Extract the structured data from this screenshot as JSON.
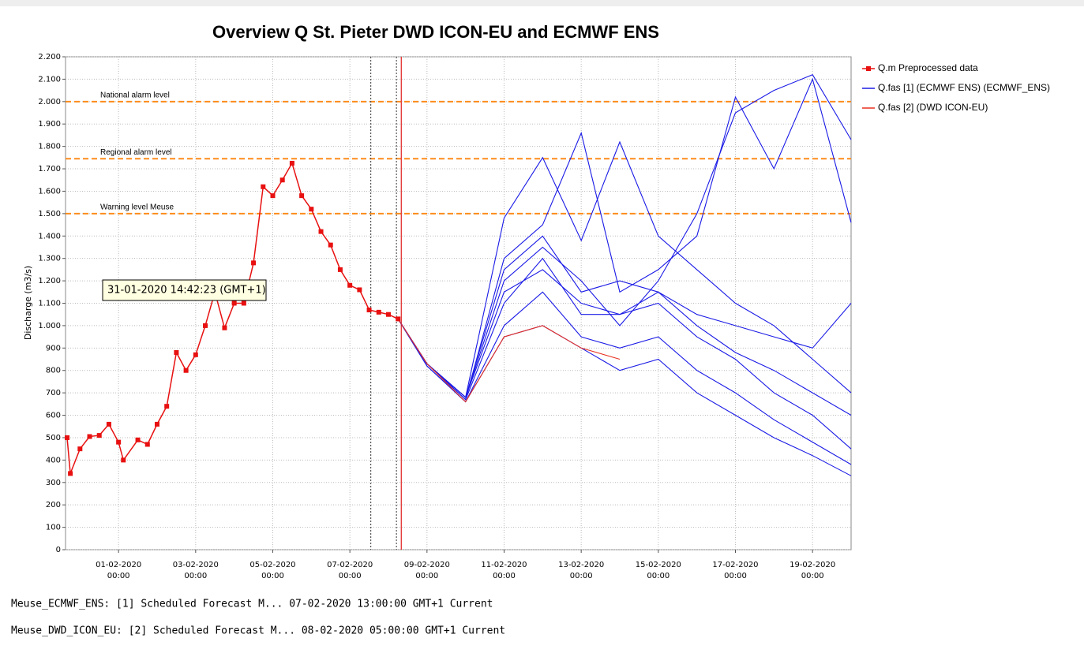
{
  "chart_data": {
    "type": "line",
    "title": "Overview Q St. Pieter DWD ICON-EU and ECMWF ENS",
    "y_label": "Discharge (m3/s)",
    "xlim": [
      "30-01-2020 15:00",
      "20-02-2020 00:00"
    ],
    "xticks": [
      "01-02-2020 00:00",
      "03-02-2020 00:00",
      "05-02-2020 00:00",
      "07-02-2020 00:00",
      "09-02-2020 00:00",
      "11-02-2020 00:00",
      "13-02-2020 00:00",
      "15-02-2020 00:00",
      "17-02-2020 00:00",
      "19-02-2020 00:00"
    ],
    "ylim": [
      0,
      2200
    ],
    "yticks": [
      0,
      100,
      200,
      300,
      400,
      500,
      600,
      700,
      800,
      900,
      {
        "value": 1000,
        "label": "1.000"
      },
      {
        "value": 1100,
        "label": "1.100"
      },
      {
        "value": 1200,
        "label": "1.200"
      },
      {
        "value": 1300,
        "label": "1.300"
      },
      {
        "value": 1400,
        "label": "1.400"
      },
      {
        "value": 1500,
        "label": "1.500"
      },
      {
        "value": 1600,
        "label": "1.600"
      },
      {
        "value": 1700,
        "label": "1.700"
      },
      {
        "value": 1800,
        "label": "1.800"
      },
      {
        "value": 1900,
        "label": "1.900"
      },
      {
        "value": 2000,
        "label": "2.000"
      },
      {
        "value": 2100,
        "label": "2.100"
      },
      {
        "value": 2200,
        "label": "2.200"
      }
    ],
    "grid": true,
    "legend": "right",
    "thresholds": [
      {
        "value": 2000,
        "label": "National alarm level",
        "color": "#ff8c1a"
      },
      {
        "value": 1745,
        "label": "Regional alarm level",
        "color": "#ff8c1a"
      },
      {
        "value": 1500,
        "label": "Warning level Meuse",
        "color": "#ff8c1a"
      }
    ],
    "vlines": [
      {
        "x": "07-02-2020 13:00",
        "color": "#555555",
        "style": "dotted"
      },
      {
        "x": "08-02-2020 05:00",
        "color": "#555555",
        "style": "dotted"
      },
      {
        "x": "08-02-2020 08:00",
        "color": "#e02020",
        "style": "solid"
      }
    ],
    "series": [
      {
        "name": "Q.m Preprocessed data",
        "color": "#e81010",
        "marker": "square",
        "x": [
          "30-01-2020 16:00",
          "30-01-2020 18:00",
          "31-01-2020 00:00",
          "31-01-2020 06:00",
          "31-01-2020 12:00",
          "31-01-2020 18:00",
          "01-02-2020 00:00",
          "01-02-2020 03:00",
          "01-02-2020 12:00",
          "01-02-2020 18:00",
          "02-02-2020 00:00",
          "02-02-2020 06:00",
          "02-02-2020 12:00",
          "02-02-2020 18:00",
          "03-02-2020 00:00",
          "03-02-2020 06:00",
          "03-02-2020 12:00",
          "03-02-2020 18:00",
          "04-02-2020 00:00",
          "04-02-2020 06:00",
          "04-02-2020 12:00",
          "04-02-2020 18:00",
          "05-02-2020 00:00",
          "05-02-2020 06:00",
          "05-02-2020 12:00",
          "05-02-2020 18:00",
          "06-02-2020 00:00",
          "06-02-2020 06:00",
          "06-02-2020 12:00",
          "06-02-2020 18:00",
          "07-02-2020 00:00",
          "07-02-2020 06:00",
          "07-02-2020 12:00",
          "07-02-2020 18:00",
          "08-02-2020 00:00",
          "08-02-2020 06:00"
        ],
        "values": [
          500,
          340,
          450,
          505,
          510,
          560,
          480,
          400,
          490,
          470,
          560,
          640,
          880,
          800,
          870,
          1000,
          1150,
          990,
          1100,
          1100,
          1280,
          1620,
          1580,
          1650,
          1725,
          1580,
          1520,
          1420,
          1360,
          1250,
          1180,
          1160,
          1070,
          1060,
          1050,
          1030
        ]
      },
      {
        "name": "Q.fas [1] (ECMWF ENS)  (ECMWF_ENS)",
        "color": "#1a1ae6",
        "x": [
          "08-02-2020 06:00",
          "09-02-2020 00:00",
          "10-02-2020 00:00",
          "11-02-2020 00:00",
          "12-02-2020 00:00",
          "13-02-2020 00:00",
          "14-02-2020 00:00",
          "15-02-2020 00:00",
          "16-02-2020 00:00",
          "17-02-2020 00:00",
          "18-02-2020 00:00",
          "19-02-2020 00:00",
          "20-02-2020 00:00"
        ],
        "members": [
          [
            1030,
            830,
            680,
            1200,
            1350,
            1200,
            1000,
            1200,
            1500,
            1950,
            2050,
            2120,
            1830
          ],
          [
            1030,
            830,
            680,
            1480,
            1750,
            1380,
            1820,
            1400,
            1250,
            1100,
            1000,
            850,
            700
          ],
          [
            1030,
            830,
            670,
            1300,
            1450,
            1860,
            1150,
            1250,
            1400,
            2020,
            1700,
            2100,
            1460
          ],
          [
            1030,
            830,
            670,
            1100,
            1300,
            1050,
            1050,
            1100,
            950,
            850,
            700,
            600,
            450
          ],
          [
            1030,
            820,
            660,
            1000,
            1150,
            950,
            900,
            950,
            800,
            700,
            580,
            480,
            380
          ],
          [
            1030,
            830,
            680,
            1250,
            1400,
            1150,
            1200,
            1150,
            1050,
            1000,
            950,
            900,
            1100
          ],
          [
            1030,
            820,
            660,
            950,
            1000,
            900,
            800,
            850,
            700,
            600,
            500,
            420,
            330
          ],
          [
            1030,
            830,
            680,
            1150,
            1250,
            1100,
            1050,
            1150,
            1000,
            880,
            800,
            700,
            600
          ]
        ]
      },
      {
        "name": "Q.fas [2] (DWD ICON-EU)",
        "color": "#e83020",
        "x": [
          "08-02-2020 06:00",
          "09-02-2020 00:00",
          "10-02-2020 00:00",
          "11-02-2020 00:00",
          "12-02-2020 00:00",
          "13-02-2020 00:00",
          "14-02-2020 00:00"
        ],
        "values": [
          1030,
          830,
          660,
          950,
          1000,
          900,
          850
        ]
      }
    ],
    "annotation": "31-01-2020 14:42:23 (GMT+1)",
    "footer": [
      "Meuse_ECMWF_ENS: [1] Scheduled Forecast M... 07-02-2020 13:00:00 GMT+1 Current",
      "Meuse_DWD_ICON_EU: [2] Scheduled Forecast M... 08-02-2020 05:00:00 GMT+1 Current"
    ]
  }
}
